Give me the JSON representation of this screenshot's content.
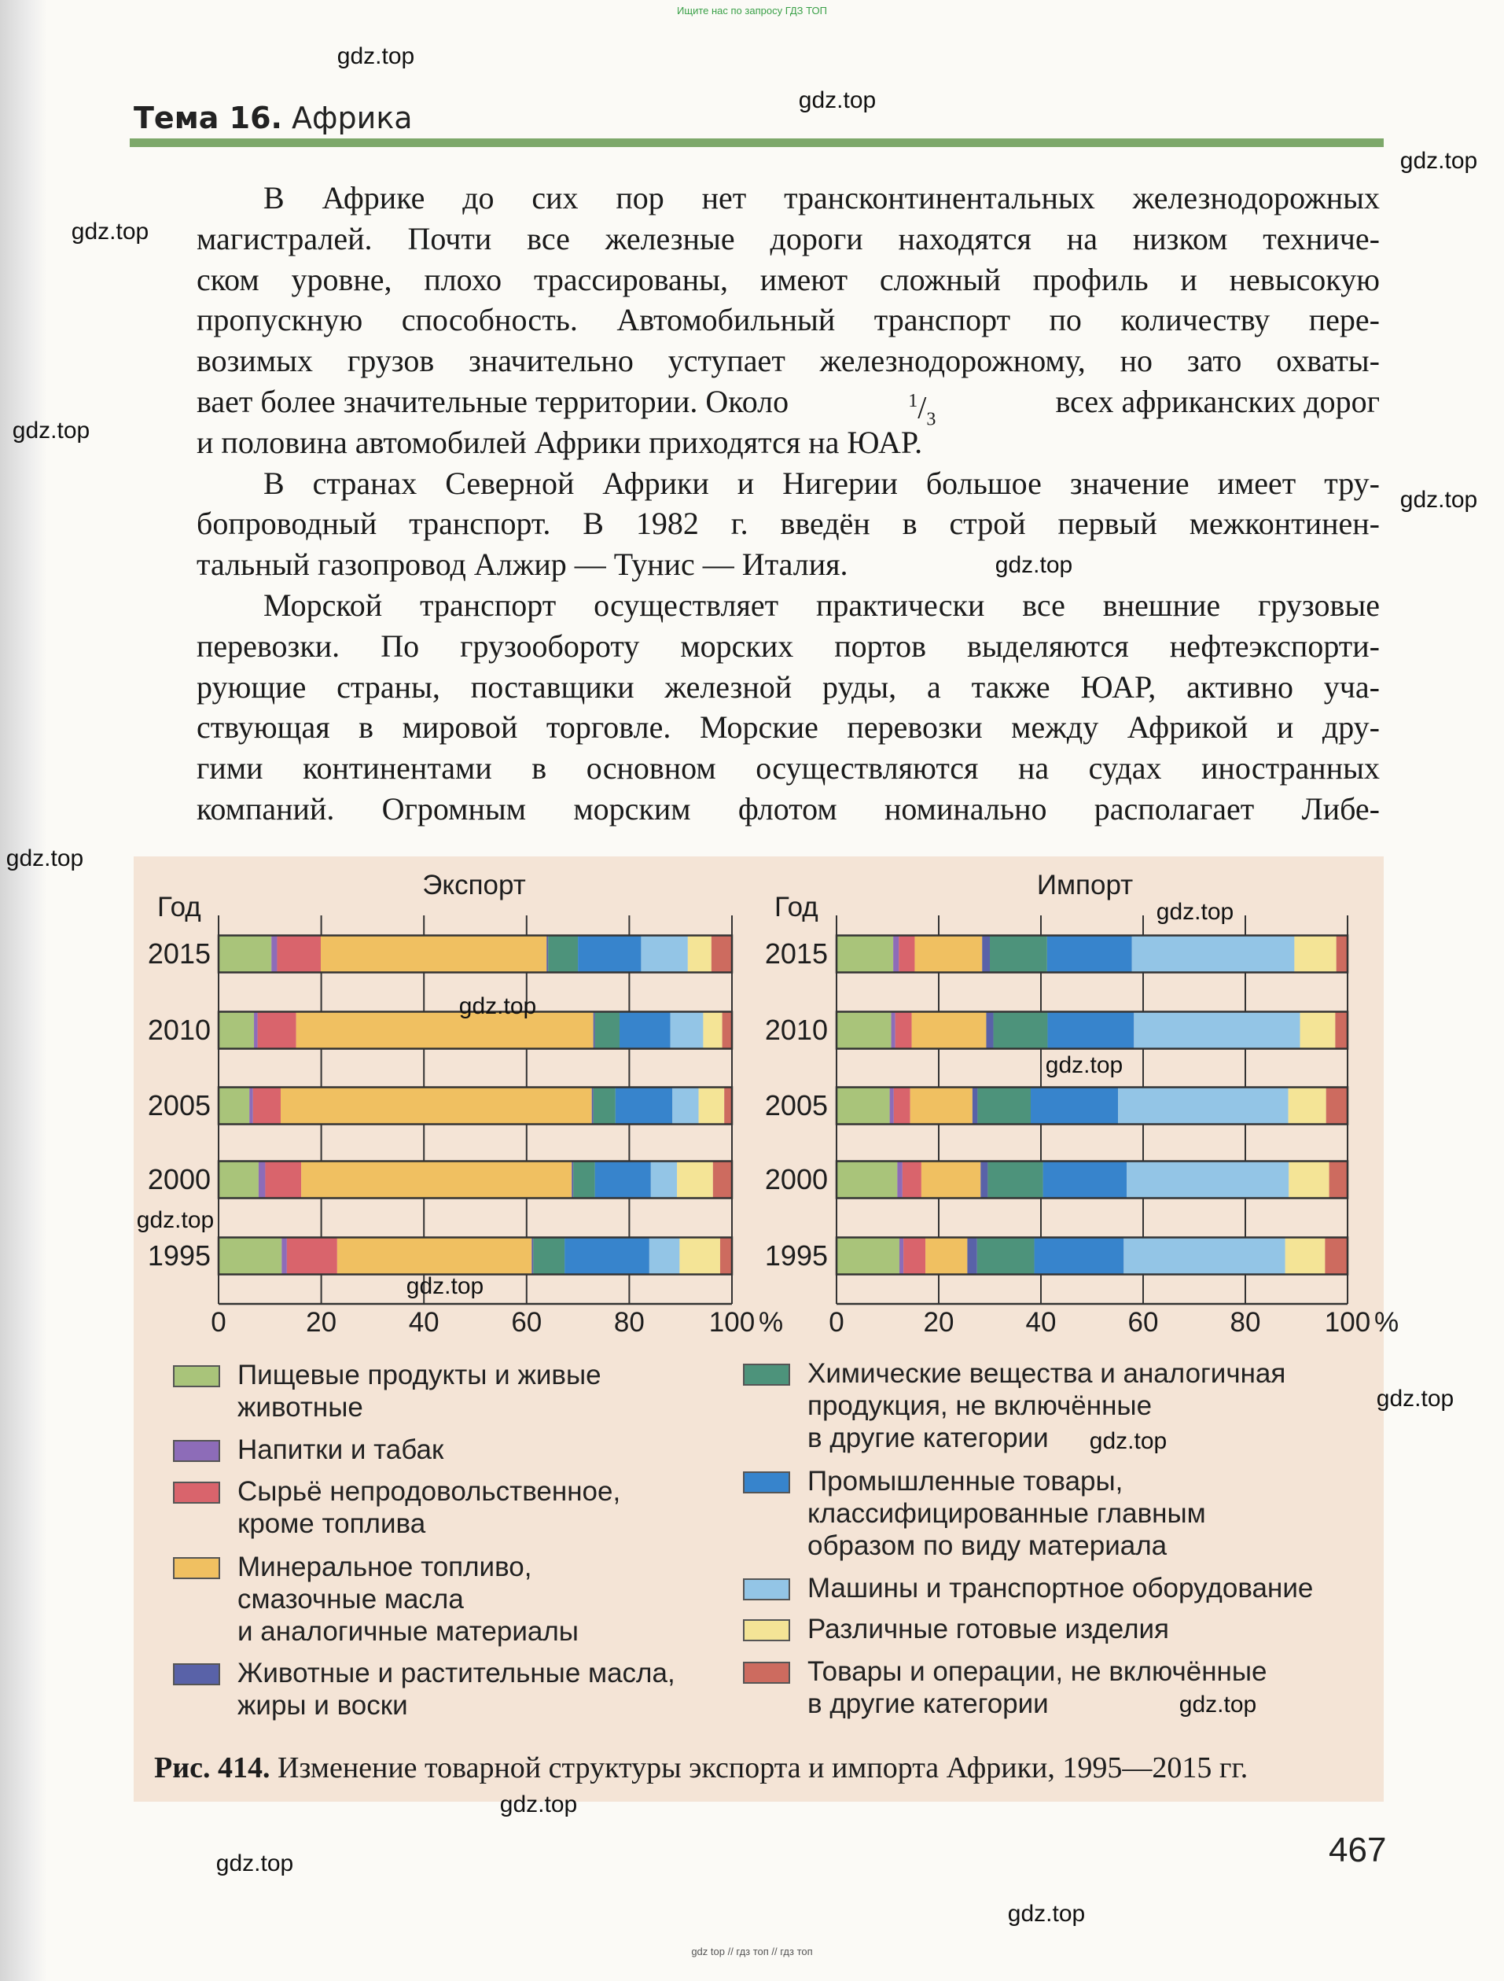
{
  "top_note": "Ищите нас по запросу ГДЗ ТОП",
  "bottom_note": "gdz top // гдз топ // гдз топ",
  "header": {
    "topic_label": "Тема 16.",
    "topic_name": "Африка"
  },
  "body": {
    "lines": [
      "В Африке до сих пор нет трансконтинентальных железнодорожных",
      "магистралей. Почти все железные дороги находятся на низком техниче-",
      "ском уровне, плохо трассированы, имеют сложный профиль и невысокую",
      "пропускную способность. Автомобильный транспорт по количеству пере-",
      "возимых грузов значительно уступает железнодорожному, но зато охваты-",
      "",
      "и половина автомобилей Африки приходятся на ЮАР.",
      "В странах Северной Африки и Нигерии большое значение имеет тру-",
      "бопроводный транспорт. В 1982 г. введён в строй первый межконтинен-",
      "тальный газопровод Алжир — Тунис — Италия.",
      "Морской транспорт осуществляет практически все внешние грузовые",
      "перевозки. По грузообороту морских портов выделяются нефтеэкспорти-",
      "рующие страны, поставщики железной руды, а также ЮАР, активно уча-",
      "ствующая в мировой торговле. Морские перевозки между Африкой и дру-",
      "гими континентами в основном осуществляются на судах иностранных",
      "компаний. Огромным морским флотом номинально располагает Либе-"
    ],
    "line6": {
      "before": "вает более значительные территории. Около",
      "numerator": "1",
      "slash": "/",
      "denominator": "3",
      "after": "всех африканских дорог"
    }
  },
  "chart_data": [
    {
      "type": "bar",
      "orientation": "horizontal-stacked",
      "title": "Экспорт",
      "ylabel": "Год",
      "xlim": [
        0,
        100
      ],
      "xticks": [
        "0",
        "20",
        "40",
        "60",
        "80",
        "100"
      ],
      "x_unit": "%",
      "grid": true,
      "categories": [
        "2015",
        "2010",
        "2005",
        "2000",
        "1995"
      ],
      "series": [
        {
          "name": "Пищевые продукты и живые животные",
          "values": [
            10.3,
            6.9,
            6.0,
            7.8,
            12.3
          ]
        },
        {
          "name": "Напитки и табак",
          "values": [
            1.1,
            0.7,
            0.7,
            1.3,
            1.0
          ]
        },
        {
          "name": "Сырьё непродовольственное, кроме топлива",
          "values": [
            8.5,
            7.5,
            5.4,
            7.0,
            9.8
          ]
        },
        {
          "name": "Минеральное топливо, смазочные масла и аналогичные материалы",
          "values": [
            44.0,
            57.9,
            60.6,
            52.7,
            37.9
          ]
        },
        {
          "name": "Животные и растительные масла, жиры и воски",
          "values": [
            0.3,
            0.3,
            0.3,
            0.3,
            0.3
          ]
        },
        {
          "name": "Химические вещества и аналогичная продукция, не включённые в другие категории",
          "values": [
            5.8,
            4.8,
            4.3,
            4.2,
            6.1
          ]
        },
        {
          "name": "Промышленные товары, классифицированные главным образом по виду материала",
          "values": [
            12.3,
            9.9,
            11.1,
            10.9,
            16.5
          ]
        },
        {
          "name": "Машины и транспортное оборудование",
          "values": [
            9.1,
            6.4,
            5.1,
            5.1,
            5.9
          ]
        },
        {
          "name": "Различные готовые изделия",
          "values": [
            4.6,
            3.7,
            5.0,
            7.0,
            7.9
          ]
        },
        {
          "name": "Товары и операции, не включённые в другие категории",
          "values": [
            4.0,
            1.9,
            1.5,
            3.7,
            2.3
          ]
        }
      ]
    },
    {
      "type": "bar",
      "orientation": "horizontal-stacked",
      "title": "Импорт",
      "ylabel": "Год",
      "xlim": [
        0,
        100
      ],
      "xticks": [
        "0",
        "20",
        "40",
        "60",
        "80",
        "100"
      ],
      "x_unit": "%",
      "grid": true,
      "categories": [
        "2015",
        "2010",
        "2005",
        "2000",
        "1995"
      ],
      "series": [
        {
          "name": "Пищевые продукты и живые животные",
          "values": [
            11.1,
            10.7,
            10.4,
            11.9,
            12.3
          ]
        },
        {
          "name": "Напитки и табак",
          "values": [
            1.1,
            0.8,
            0.8,
            1.0,
            0.8
          ]
        },
        {
          "name": "Сырьё непродовольственное, кроме топлива",
          "values": [
            3.1,
            3.2,
            3.2,
            3.7,
            4.3
          ]
        },
        {
          "name": "Минеральное топливо, смазочные масла и аналогичные материалы",
          "values": [
            13.2,
            14.6,
            12.2,
            11.6,
            8.2
          ]
        },
        {
          "name": "Животные и растительные масла, жиры и воски",
          "values": [
            1.5,
            1.4,
            1.0,
            1.4,
            1.9
          ]
        },
        {
          "name": "Химические вещества и аналогичная продукция, не включённые в другие категории",
          "values": [
            11.2,
            10.6,
            10.4,
            10.8,
            11.2
          ]
        },
        {
          "name": "Промышленные товары, классифицированные главным образом по виду материала",
          "values": [
            16.6,
            16.9,
            17.1,
            16.4,
            17.5
          ]
        },
        {
          "name": "Машины и транспортное оборудование",
          "values": [
            31.8,
            32.5,
            33.3,
            31.7,
            31.6
          ]
        },
        {
          "name": "Различные готовые изделия",
          "values": [
            8.2,
            6.9,
            7.4,
            7.9,
            7.8
          ]
        },
        {
          "name": "Товары и операции, не включённые в другие категории",
          "values": [
            2.2,
            2.4,
            4.2,
            3.6,
            4.5
          ]
        }
      ]
    }
  ],
  "colors": [
    "#a9c47a",
    "#8d6cb8",
    "#d9646c",
    "#f0c061",
    "#5962a8",
    "#4d937b",
    "#3784cc",
    "#93c5e6",
    "#f4e496",
    "#cd6b5f"
  ],
  "legend": [
    {
      "lines": [
        "Пищевые продукты и живые",
        "животные"
      ]
    },
    {
      "lines": [
        "Напитки и табак"
      ]
    },
    {
      "lines": [
        "Сырьё непродовольственное,",
        "кроме топлива"
      ]
    },
    {
      "lines": [
        "Минеральное топливо,",
        "смазочные масла",
        "и аналогичные материалы"
      ]
    },
    {
      "lines": [
        "Животные и растительные масла,",
        "жиры и воски"
      ]
    },
    {
      "lines": [
        "Химические вещества и аналогичная",
        "продукция, не включённые",
        "в другие категории"
      ]
    },
    {
      "lines": [
        "Промышленные товары,",
        "классифицированные главным",
        "образом по виду материала"
      ]
    },
    {
      "lines": [
        "Машины и транспортное оборудование"
      ]
    },
    {
      "lines": [
        "Различные готовые изделия"
      ]
    },
    {
      "lines": [
        "Товары и операции, не включённые",
        "в другие категории"
      ]
    }
  ],
  "caption": {
    "label": "Рис. 414.",
    "text": "Изменение товарной структуры экспорта и импорта Африки, 1995—2015 гг."
  },
  "page_number": "467",
  "watermarks": [
    "gdz.top",
    "gdz.top",
    "gdz.top",
    "gdz.top",
    "gdz.top",
    "gdz.top",
    "gdz.top",
    "gdz.top",
    "gdz.top",
    "gdz.top",
    "gdz.top",
    "gdz.top",
    "gdz.top",
    "gdz.top",
    "gdz.top",
    "gdz.top",
    "gdz.top",
    "gdz.top",
    "gdz.top"
  ]
}
